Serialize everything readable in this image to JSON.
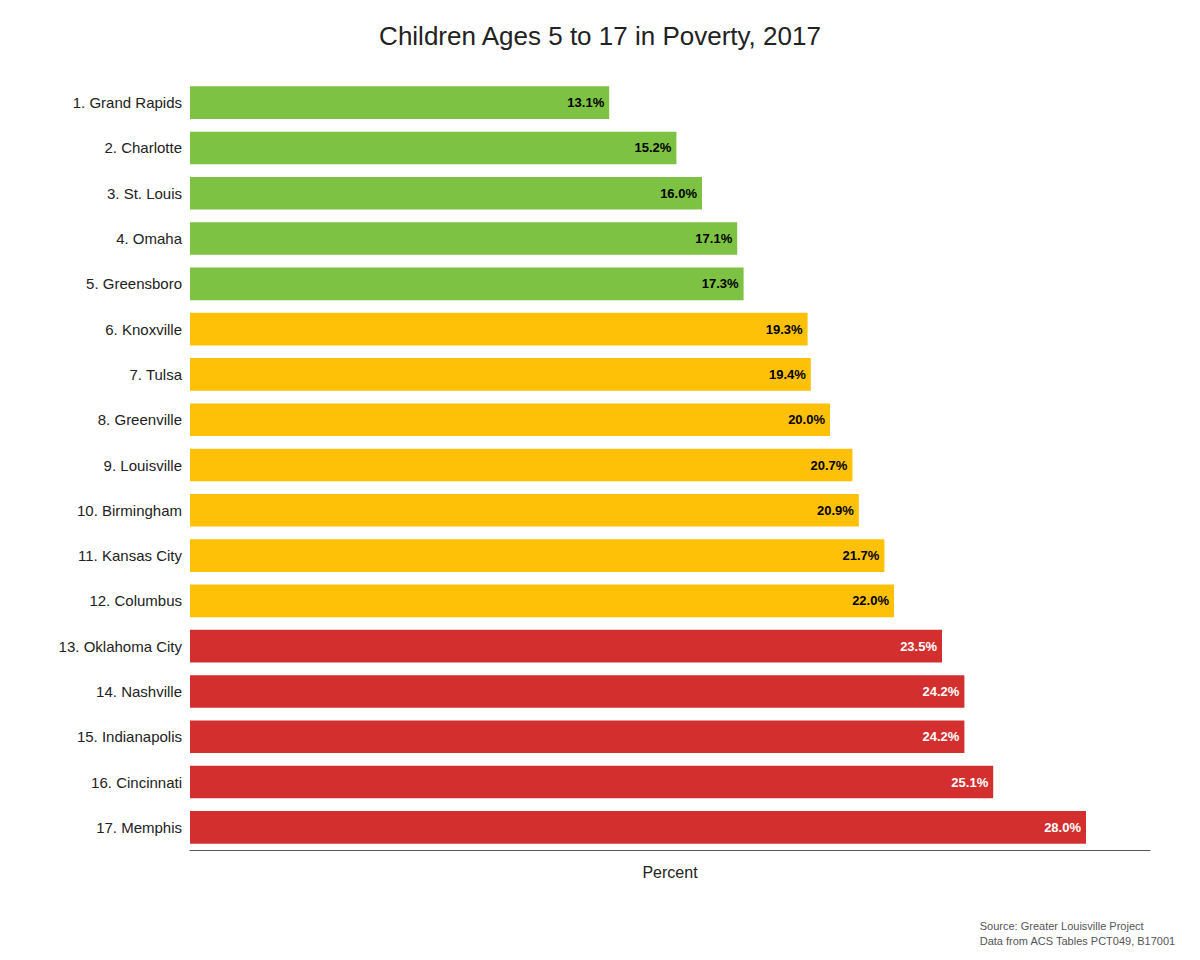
{
  "chart_data": {
    "type": "bar",
    "orientation": "horizontal",
    "title": "Children Ages 5 to 17 in Poverty, 2017",
    "xlabel": "Percent",
    "annotations": [
      "Source: Greater Louisville Project\nData from ACS Tables PCT049, B17001"
    ],
    "categories": [
      "1. Grand Rapids",
      "2. Charlotte",
      "3. St. Louis",
      "4. Omaha",
      "5. Greensboro",
      "6. Knoxville",
      "7. Tulsa",
      "8. Greenville",
      "9. Louisville",
      "10. Birmingham",
      "11. Kansas City",
      "12. Columbus",
      "13. Oklahoma City",
      "14. Nashville",
      "15. Indianapolis",
      "16. Cincinnati",
      "17. Memphis"
    ],
    "values": [
      13.1,
      15.2,
      16.0,
      17.1,
      17.3,
      19.3,
      19.4,
      20.0,
      20.7,
      20.9,
      21.7,
      22.0,
      23.5,
      24.2,
      24.2,
      25.1,
      28.0
    ],
    "value_labels": [
      "13.1%",
      "15.2%",
      "16.0%",
      "17.1%",
      "17.3%",
      "19.3%",
      "19.4%",
      "20.0%",
      "20.7%",
      "20.9%",
      "21.7%",
      "22.0%",
      "23.5%",
      "24.2%",
      "24.2%",
      "25.1%",
      "28.0%"
    ],
    "colors": [
      "#7DC242",
      "#7DC242",
      "#7DC242",
      "#7DC242",
      "#7DC242",
      "#FFC107",
      "#FFC107",
      "#FFC107",
      "#FFC107",
      "#FFC107",
      "#FFC107",
      "#FFC107",
      "#D32F2F",
      "#D32F2F",
      "#D32F2F",
      "#D32F2F",
      "#D32F2F"
    ],
    "data_labels": true,
    "xlim": [
      0,
      30
    ],
    "tick_labels": "y",
    "grid": false
  }
}
